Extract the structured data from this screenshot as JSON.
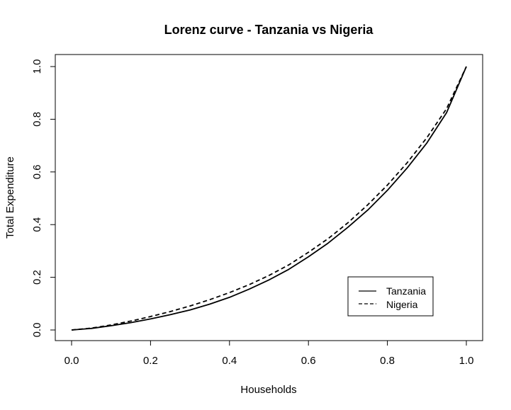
{
  "chart_data": {
    "type": "line",
    "title": "Lorenz curve - Tanzania vs Nigeria",
    "xlabel": "Households",
    "ylabel": "Total Expenditure",
    "xlim": [
      0,
      1
    ],
    "ylim": [
      0,
      1
    ],
    "xticks": [
      "0.0",
      "0.2",
      "0.4",
      "0.6",
      "0.8",
      "1.0"
    ],
    "yticks": [
      "0.0",
      "0.2",
      "0.4",
      "0.6",
      "0.8",
      "1.0"
    ],
    "grid": false,
    "legend_position": "bottom-right",
    "series": [
      {
        "name": "Tanzania",
        "line_style": "solid",
        "color": "#000000",
        "x": [
          0.0,
          0.05,
          0.1,
          0.15,
          0.2,
          0.25,
          0.3,
          0.35,
          0.4,
          0.45,
          0.5,
          0.55,
          0.6,
          0.65,
          0.7,
          0.75,
          0.8,
          0.85,
          0.9,
          0.95,
          1.0
        ],
        "y": [
          0.0,
          0.006,
          0.016,
          0.028,
          0.042,
          0.058,
          0.076,
          0.098,
          0.124,
          0.155,
          0.19,
          0.23,
          0.278,
          0.33,
          0.39,
          0.455,
          0.53,
          0.615,
          0.71,
          0.825,
          1.0
        ]
      },
      {
        "name": "Nigeria",
        "line_style": "dashed",
        "color": "#000000",
        "x": [
          0.0,
          0.05,
          0.1,
          0.15,
          0.2,
          0.25,
          0.3,
          0.35,
          0.4,
          0.45,
          0.5,
          0.55,
          0.6,
          0.65,
          0.7,
          0.75,
          0.8,
          0.85,
          0.9,
          0.95,
          1.0
        ],
        "y": [
          0.0,
          0.007,
          0.019,
          0.034,
          0.051,
          0.07,
          0.091,
          0.115,
          0.142,
          0.172,
          0.207,
          0.247,
          0.295,
          0.347,
          0.407,
          0.475,
          0.55,
          0.635,
          0.73,
          0.84,
          1.0
        ]
      }
    ]
  }
}
